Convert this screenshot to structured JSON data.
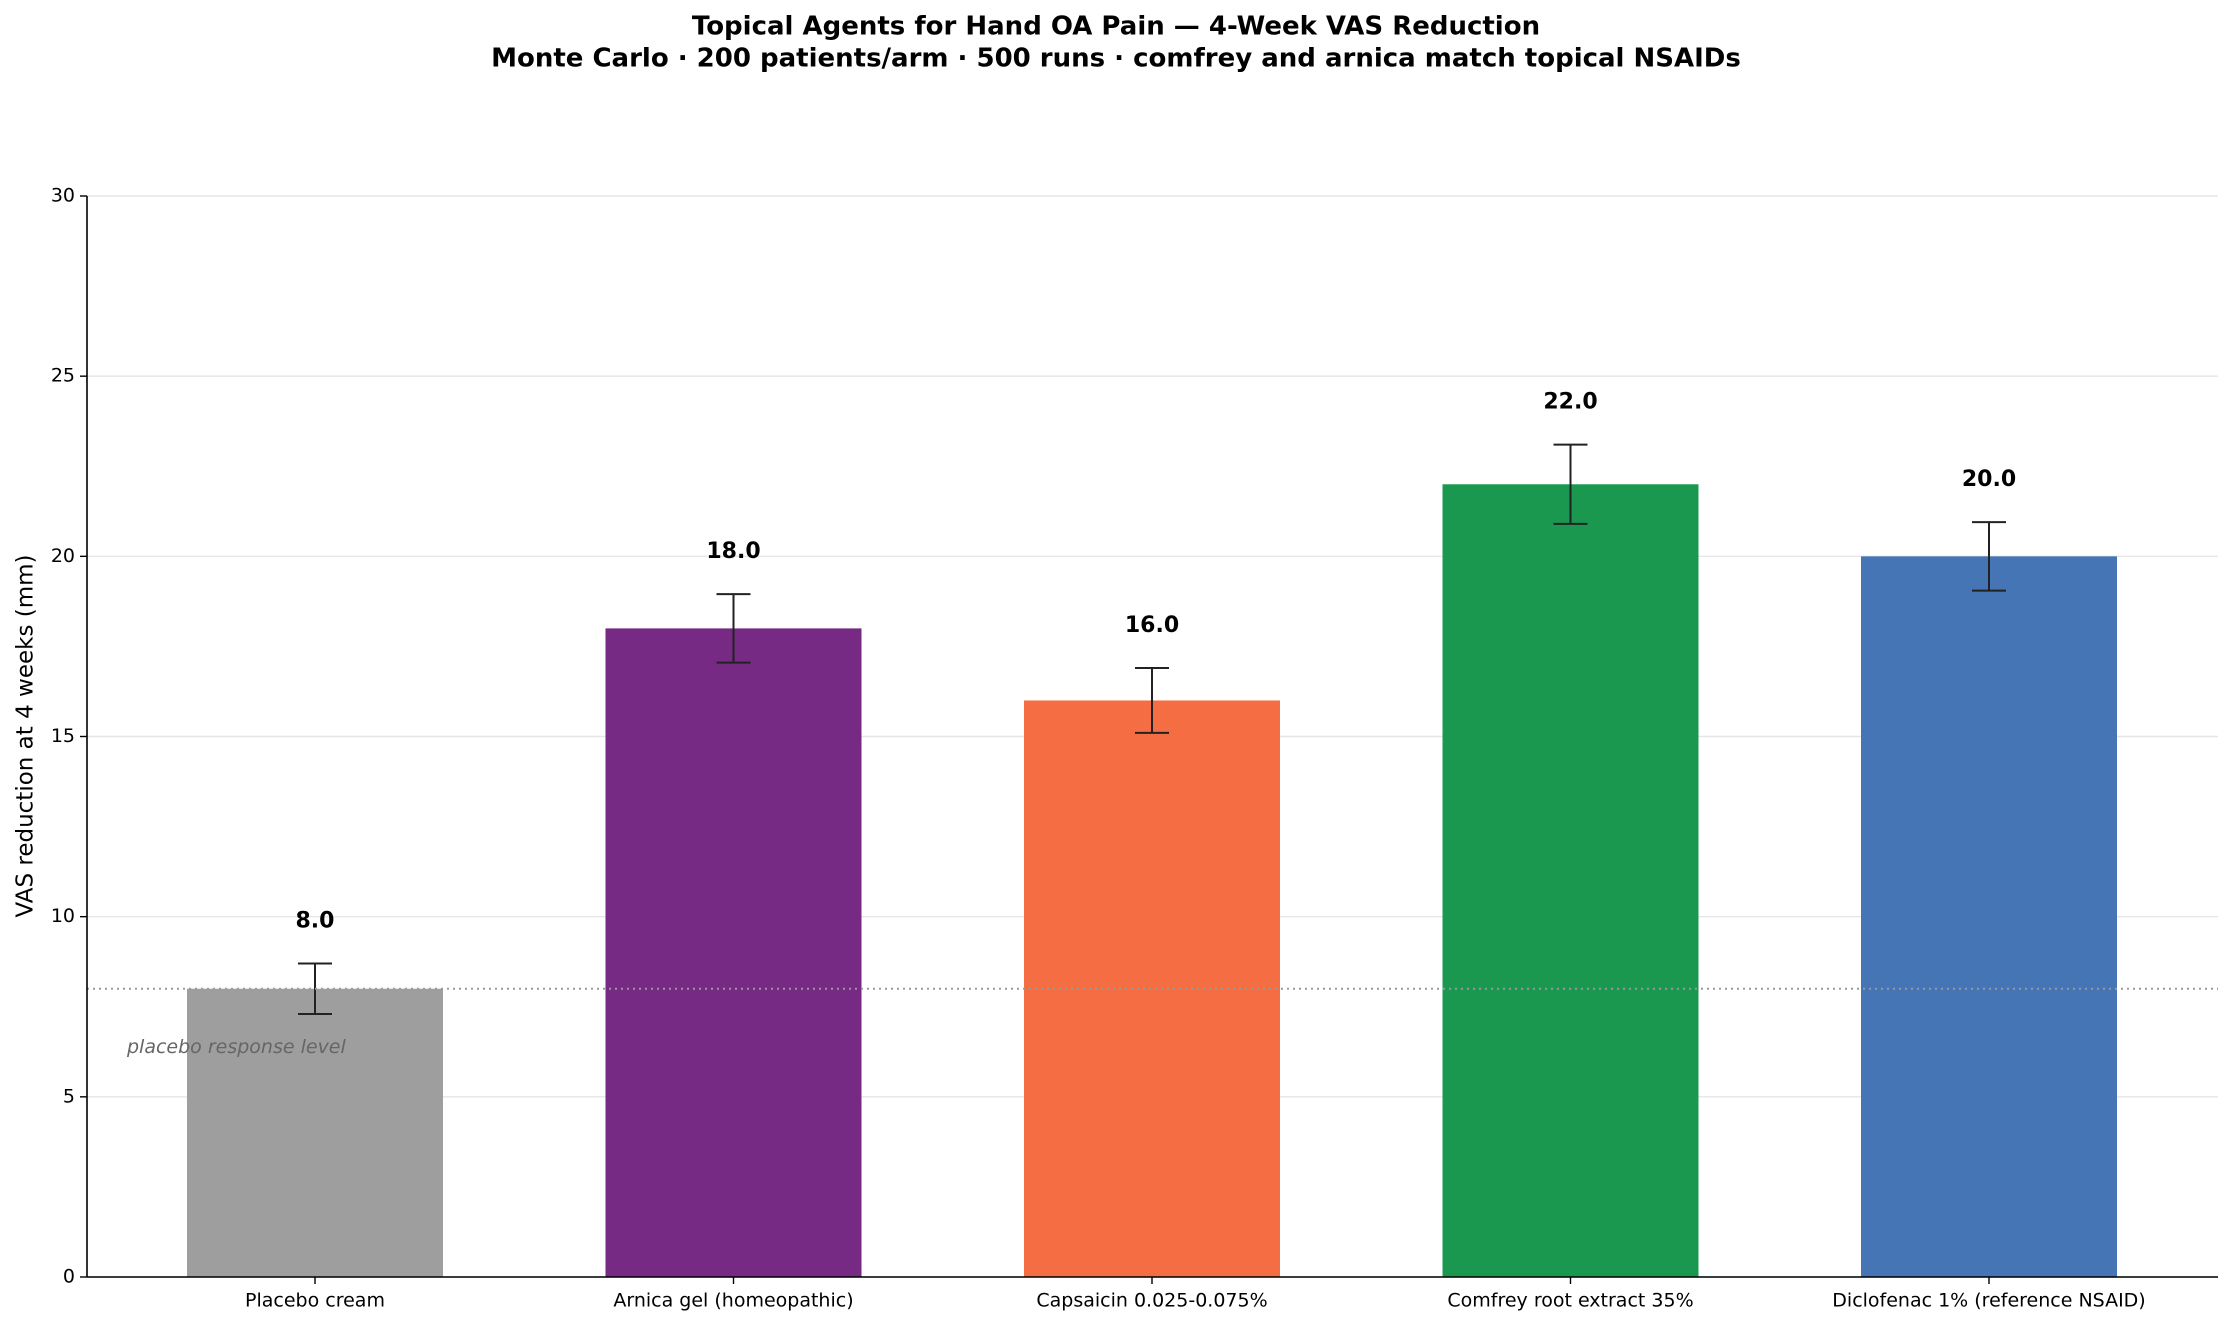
{
  "chart_data": {
    "type": "bar",
    "title": "Topical Agents for Hand OA Pain — 4-Week VAS Reduction",
    "subtitle": "Monte Carlo · 200 patients/arm · 500 runs · comfrey and arnica match topical NSAIDs",
    "y_label": "VAS reduction at 4 weeks (mm)",
    "categories": [
      "Placebo cream",
      "Arnica gel (homeopathic)",
      "Capsaicin 0.025-0.075%",
      "Comfrey root extract 35%",
      "Diclofenac 1% (reference NSAID)"
    ],
    "values": [
      8,
      18,
      16,
      22,
      20
    ],
    "value_labels": [
      "8.0",
      "18.0",
      "16.0",
      "22.0",
      "20.0"
    ],
    "errors": [
      0.7,
      0.95,
      0.9,
      1.1,
      0.95
    ],
    "colors": [
      "#9e9e9e",
      "#762a83",
      "#f46d43",
      "#1a9850",
      "#4575b4"
    ],
    "ylim": [
      0,
      30
    ],
    "yticks": [
      0,
      5,
      10,
      15,
      20,
      25,
      30
    ],
    "grid": true,
    "reference_line": {
      "value": 8,
      "label": "placebo response level"
    }
  }
}
